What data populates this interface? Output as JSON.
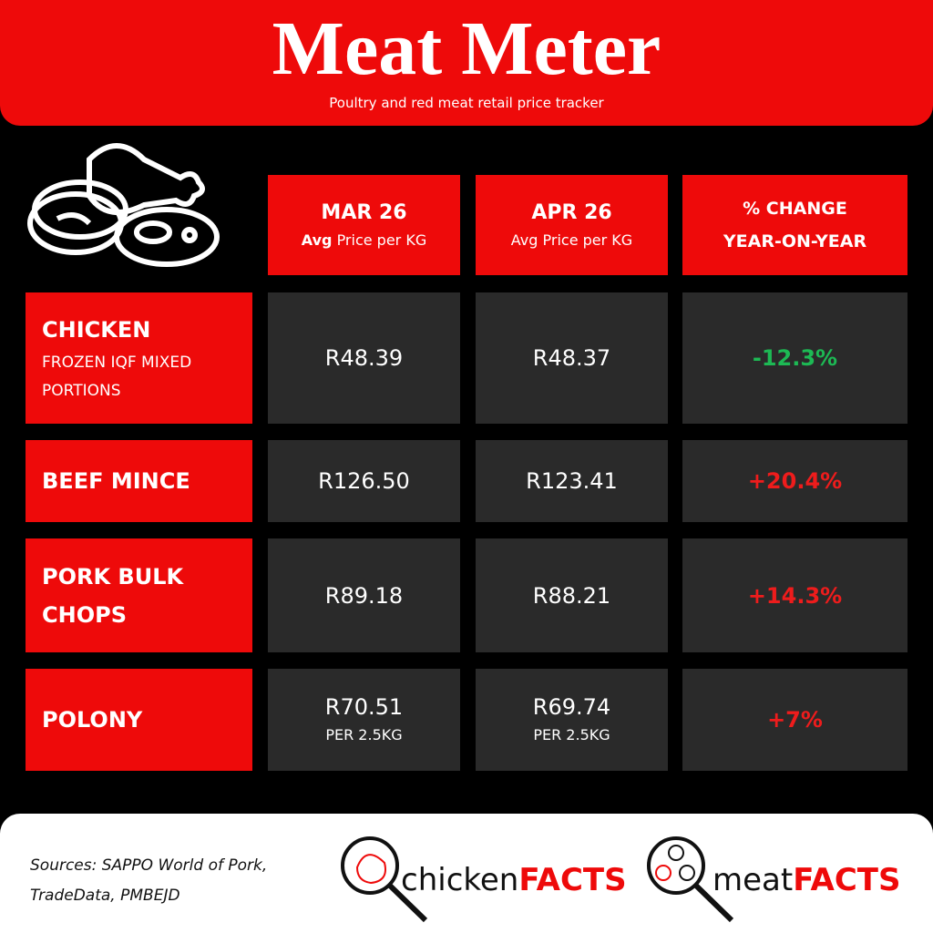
{
  "header": {
    "title": "Meat Meter",
    "subtitle": "Poultry and red meat retail price tracker"
  },
  "table": {
    "columns": [
      {
        "month": "MAR 26",
        "unit_bold": "Avg",
        "unit": "Price per KG"
      },
      {
        "month": "APR 26",
        "unit": "Avg Price per KG"
      },
      {
        "line1": "% CHANGE",
        "line2": "YEAR-ON-YEAR"
      }
    ],
    "rows": [
      {
        "name": "CHICKEN",
        "detail": "FROZEN IQF MIXED PORTIONS",
        "mar": "R48.39",
        "apr": "R48.37",
        "change": "-12.3%",
        "change_color": "#1db954"
      },
      {
        "name": "BEEF MINCE",
        "mar": "R126.50",
        "apr": "R123.41",
        "change": "+20.4%",
        "change_color": "#ee1c1c"
      },
      {
        "name": "PORK BULK CHOPS",
        "mar": "R89.18",
        "apr": "R88.21",
        "change": "+14.3%",
        "change_color": "#ee1c1c"
      },
      {
        "name": "POLONY",
        "mar": "R70.51",
        "mar_note": "PER 2.5KG",
        "apr": "R69.74",
        "apr_note": "PER 2.5KG",
        "change": "+7%",
        "change_color": "#ee1c1c"
      }
    ]
  },
  "footer": {
    "sources": [
      "Sources: SAPPO World of Pork,",
      "TradeData, PMBEJD"
    ],
    "logos": [
      {
        "word": "chicken",
        "facts": "FACTS"
      },
      {
        "word": "meat",
        "facts": "FACTS"
      }
    ]
  }
}
